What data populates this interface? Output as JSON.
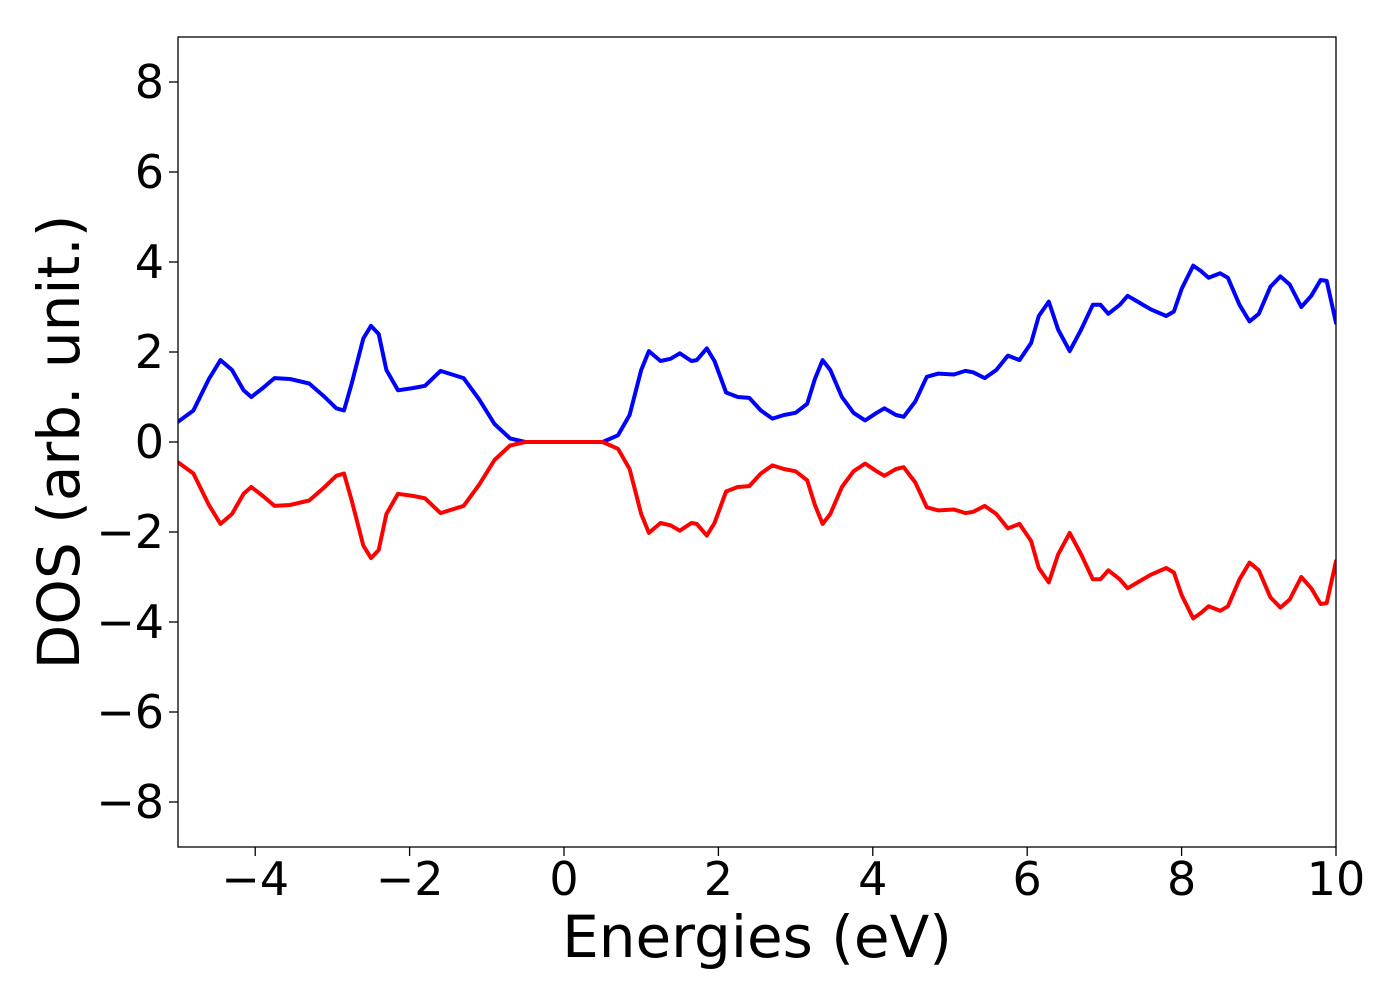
{
  "chart_data": {
    "type": "line",
    "title": "",
    "xlabel": "Energies (eV)",
    "ylabel": "DOS (arb. unit.)",
    "xlim": [
      -5,
      10
    ],
    "ylim": [
      -9,
      9
    ],
    "xticks": [
      -4,
      -2,
      0,
      2,
      4,
      6,
      8,
      10
    ],
    "yticks": [
      -8,
      -6,
      -4,
      -2,
      0,
      2,
      4,
      6,
      8
    ],
    "xtick_labels": [
      "−4",
      "−2",
      "0",
      "2",
      "4",
      "6",
      "8",
      "10"
    ],
    "ytick_labels": [
      "−8",
      "−6",
      "−4",
      "−2",
      "0",
      "2",
      "4",
      "6",
      "8"
    ],
    "grid": false,
    "legend": false,
    "series": [
      {
        "color": "#0000ff",
        "points": [
          [
            -5.0,
            0.45
          ],
          [
            -4.8,
            0.7
          ],
          [
            -4.6,
            1.4
          ],
          [
            -4.45,
            1.82
          ],
          [
            -4.3,
            1.6
          ],
          [
            -4.15,
            1.15
          ],
          [
            -4.05,
            1.0
          ],
          [
            -3.9,
            1.2
          ],
          [
            -3.75,
            1.42
          ],
          [
            -3.55,
            1.4
          ],
          [
            -3.3,
            1.3
          ],
          [
            -3.1,
            1.0
          ],
          [
            -2.95,
            0.75
          ],
          [
            -2.85,
            0.7
          ],
          [
            -2.75,
            1.3
          ],
          [
            -2.6,
            2.3
          ],
          [
            -2.5,
            2.58
          ],
          [
            -2.4,
            2.4
          ],
          [
            -2.3,
            1.6
          ],
          [
            -2.15,
            1.15
          ],
          [
            -1.95,
            1.2
          ],
          [
            -1.8,
            1.25
          ],
          [
            -1.6,
            1.58
          ],
          [
            -1.45,
            1.5
          ],
          [
            -1.3,
            1.42
          ],
          [
            -1.1,
            0.95
          ],
          [
            -0.9,
            0.4
          ],
          [
            -0.7,
            0.08
          ],
          [
            -0.5,
            0.0
          ],
          [
            0.0,
            0.0
          ],
          [
            0.5,
            0.0
          ],
          [
            0.7,
            0.15
          ],
          [
            0.85,
            0.6
          ],
          [
            1.0,
            1.6
          ],
          [
            1.1,
            2.02
          ],
          [
            1.25,
            1.8
          ],
          [
            1.38,
            1.85
          ],
          [
            1.5,
            1.97
          ],
          [
            1.65,
            1.8
          ],
          [
            1.72,
            1.82
          ],
          [
            1.85,
            2.08
          ],
          [
            1.95,
            1.8
          ],
          [
            2.1,
            1.1
          ],
          [
            2.25,
            1.0
          ],
          [
            2.4,
            0.98
          ],
          [
            2.55,
            0.7
          ],
          [
            2.7,
            0.52
          ],
          [
            2.85,
            0.6
          ],
          [
            3.0,
            0.65
          ],
          [
            3.15,
            0.85
          ],
          [
            3.25,
            1.4
          ],
          [
            3.35,
            1.82
          ],
          [
            3.45,
            1.6
          ],
          [
            3.6,
            1.0
          ],
          [
            3.75,
            0.65
          ],
          [
            3.9,
            0.48
          ],
          [
            4.05,
            0.65
          ],
          [
            4.15,
            0.75
          ],
          [
            4.3,
            0.6
          ],
          [
            4.4,
            0.56
          ],
          [
            4.55,
            0.9
          ],
          [
            4.7,
            1.45
          ],
          [
            4.85,
            1.52
          ],
          [
            5.05,
            1.5
          ],
          [
            5.2,
            1.58
          ],
          [
            5.3,
            1.55
          ],
          [
            5.45,
            1.42
          ],
          [
            5.6,
            1.6
          ],
          [
            5.75,
            1.92
          ],
          [
            5.9,
            1.82
          ],
          [
            6.05,
            2.2
          ],
          [
            6.15,
            2.8
          ],
          [
            6.28,
            3.12
          ],
          [
            6.4,
            2.5
          ],
          [
            6.55,
            2.02
          ],
          [
            6.7,
            2.5
          ],
          [
            6.85,
            3.05
          ],
          [
            6.95,
            3.05
          ],
          [
            7.05,
            2.85
          ],
          [
            7.2,
            3.05
          ],
          [
            7.3,
            3.25
          ],
          [
            7.45,
            3.1
          ],
          [
            7.6,
            2.95
          ],
          [
            7.8,
            2.8
          ],
          [
            7.9,
            2.9
          ],
          [
            8.0,
            3.4
          ],
          [
            8.15,
            3.92
          ],
          [
            8.25,
            3.8
          ],
          [
            8.35,
            3.65
          ],
          [
            8.5,
            3.75
          ],
          [
            8.6,
            3.65
          ],
          [
            8.75,
            3.05
          ],
          [
            8.88,
            2.68
          ],
          [
            9.0,
            2.85
          ],
          [
            9.15,
            3.45
          ],
          [
            9.28,
            3.68
          ],
          [
            9.4,
            3.5
          ],
          [
            9.55,
            3.0
          ],
          [
            9.68,
            3.25
          ],
          [
            9.8,
            3.6
          ],
          [
            9.88,
            3.58
          ],
          [
            10.0,
            2.65
          ]
        ]
      },
      {
        "color": "#ff0000",
        "points": [
          [
            -5.0,
            -0.45
          ],
          [
            -4.8,
            -0.7
          ],
          [
            -4.6,
            -1.4
          ],
          [
            -4.45,
            -1.82
          ],
          [
            -4.3,
            -1.6
          ],
          [
            -4.15,
            -1.15
          ],
          [
            -4.05,
            -1.0
          ],
          [
            -3.9,
            -1.2
          ],
          [
            -3.75,
            -1.42
          ],
          [
            -3.55,
            -1.4
          ],
          [
            -3.3,
            -1.3
          ],
          [
            -3.1,
            -1.0
          ],
          [
            -2.95,
            -0.75
          ],
          [
            -2.85,
            -0.7
          ],
          [
            -2.75,
            -1.3
          ],
          [
            -2.6,
            -2.3
          ],
          [
            -2.5,
            -2.58
          ],
          [
            -2.4,
            -2.4
          ],
          [
            -2.3,
            -1.6
          ],
          [
            -2.15,
            -1.15
          ],
          [
            -1.95,
            -1.2
          ],
          [
            -1.8,
            -1.25
          ],
          [
            -1.6,
            -1.58
          ],
          [
            -1.45,
            -1.5
          ],
          [
            -1.3,
            -1.42
          ],
          [
            -1.1,
            -0.95
          ],
          [
            -0.9,
            -0.4
          ],
          [
            -0.7,
            -0.08
          ],
          [
            -0.5,
            0.0
          ],
          [
            0.0,
            0.0
          ],
          [
            0.5,
            0.0
          ],
          [
            0.7,
            -0.15
          ],
          [
            0.85,
            -0.6
          ],
          [
            1.0,
            -1.6
          ],
          [
            1.1,
            -2.02
          ],
          [
            1.25,
            -1.8
          ],
          [
            1.38,
            -1.85
          ],
          [
            1.5,
            -1.97
          ],
          [
            1.65,
            -1.8
          ],
          [
            1.72,
            -1.82
          ],
          [
            1.85,
            -2.08
          ],
          [
            1.95,
            -1.8
          ],
          [
            2.1,
            -1.1
          ],
          [
            2.25,
            -1.0
          ],
          [
            2.4,
            -0.98
          ],
          [
            2.55,
            -0.7
          ],
          [
            2.7,
            -0.52
          ],
          [
            2.85,
            -0.6
          ],
          [
            3.0,
            -0.65
          ],
          [
            3.15,
            -0.85
          ],
          [
            3.25,
            -1.4
          ],
          [
            3.35,
            -1.82
          ],
          [
            3.45,
            -1.6
          ],
          [
            3.6,
            -1.0
          ],
          [
            3.75,
            -0.65
          ],
          [
            3.9,
            -0.48
          ],
          [
            4.05,
            -0.65
          ],
          [
            4.15,
            -0.75
          ],
          [
            4.3,
            -0.6
          ],
          [
            4.4,
            -0.56
          ],
          [
            4.55,
            -0.9
          ],
          [
            4.7,
            -1.45
          ],
          [
            4.85,
            -1.52
          ],
          [
            5.05,
            -1.5
          ],
          [
            5.2,
            -1.58
          ],
          [
            5.3,
            -1.55
          ],
          [
            5.45,
            -1.42
          ],
          [
            5.6,
            -1.6
          ],
          [
            5.75,
            -1.92
          ],
          [
            5.9,
            -1.82
          ],
          [
            6.05,
            -2.2
          ],
          [
            6.15,
            -2.8
          ],
          [
            6.28,
            -3.12
          ],
          [
            6.4,
            -2.5
          ],
          [
            6.55,
            -2.02
          ],
          [
            6.7,
            -2.5
          ],
          [
            6.85,
            -3.05
          ],
          [
            6.95,
            -3.05
          ],
          [
            7.05,
            -2.85
          ],
          [
            7.2,
            -3.05
          ],
          [
            7.3,
            -3.25
          ],
          [
            7.45,
            -3.1
          ],
          [
            7.6,
            -2.95
          ],
          [
            7.8,
            -2.8
          ],
          [
            7.9,
            -2.9
          ],
          [
            8.0,
            -3.4
          ],
          [
            8.15,
            -3.92
          ],
          [
            8.25,
            -3.8
          ],
          [
            8.35,
            -3.65
          ],
          [
            8.5,
            -3.75
          ],
          [
            8.6,
            -3.65
          ],
          [
            8.75,
            -3.05
          ],
          [
            8.88,
            -2.68
          ],
          [
            9.0,
            -2.85
          ],
          [
            9.15,
            -3.45
          ],
          [
            9.28,
            -3.68
          ],
          [
            9.4,
            -3.5
          ],
          [
            9.55,
            -3.0
          ],
          [
            9.68,
            -3.25
          ],
          [
            9.8,
            -3.6
          ],
          [
            9.88,
            -3.58
          ],
          [
            10.0,
            -2.65
          ]
        ]
      }
    ]
  }
}
